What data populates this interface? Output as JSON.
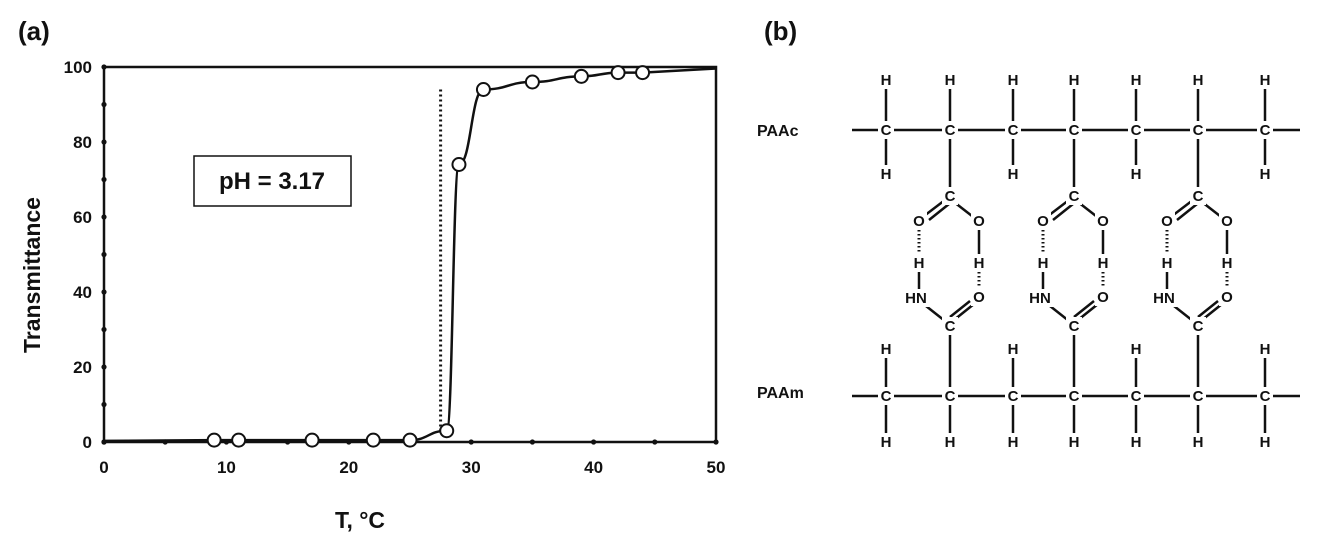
{
  "panels": {
    "a": {
      "label": "(a)"
    },
    "b": {
      "label": "(b)"
    }
  },
  "chart_data": {
    "type": "scatter",
    "xlabel": "T, °C",
    "ylabel": "Transmittance",
    "xlim": [
      0,
      50
    ],
    "ylim": [
      0,
      100
    ],
    "x_ticks": [
      "0",
      "10",
      "20",
      "30",
      "40",
      "50"
    ],
    "y_ticks": [
      "0",
      "20",
      "40",
      "60",
      "80",
      "100"
    ],
    "grid": false,
    "annotation": "pH = 3.17",
    "reference_line_x": 27.5,
    "series": [
      {
        "x": [
          9,
          11,
          17,
          22,
          25,
          28,
          29,
          31,
          35,
          39,
          42,
          44
        ],
        "y": [
          0.5,
          0.5,
          0.5,
          0.5,
          0.5,
          3,
          74,
          94,
          96,
          97.5,
          98.5,
          98.5
        ]
      }
    ]
  },
  "structure": {
    "polymer_top": "PAAc",
    "polymer_bottom": "PAAm",
    "atoms": {
      "H": "H",
      "C": "C",
      "O": "O",
      "HN": "HN"
    }
  }
}
